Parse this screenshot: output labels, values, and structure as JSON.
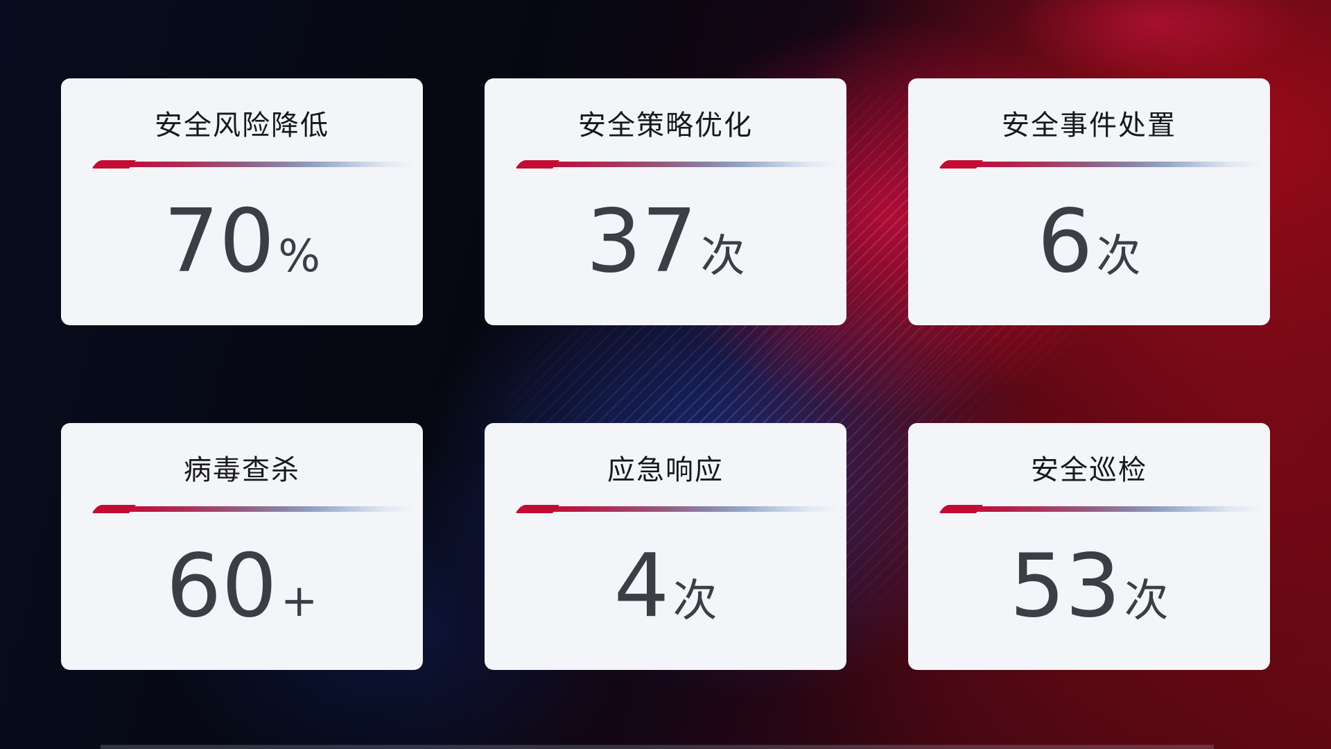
{
  "cards": [
    {
      "label": "安全风险降低",
      "value": "70",
      "unit": "%"
    },
    {
      "label": "安全策略优化",
      "value": "37",
      "unit": "次"
    },
    {
      "label": "安全事件处置",
      "value": "6",
      "unit": "次"
    },
    {
      "label": "病毒查杀",
      "value": "60",
      "unit": "+"
    },
    {
      "label": "应急响应",
      "value": "4",
      "unit": "次"
    },
    {
      "label": "安全巡检",
      "value": "53",
      "unit": "次"
    }
  ],
  "colors": {
    "card_background": "#f4f5f8",
    "title_text": "#16181e",
    "value_text": "#3c3e45",
    "accent_red": "#c40b33",
    "accent_steel_blue": "#93a5c6",
    "background_navy": "#080c1e",
    "background_red": "#7a0a16",
    "background_crimson": "#c90e3e"
  }
}
